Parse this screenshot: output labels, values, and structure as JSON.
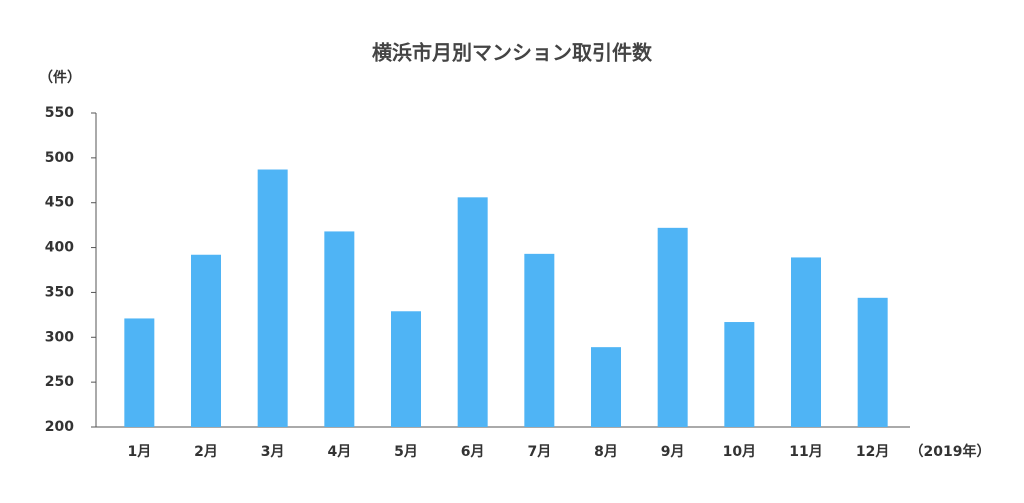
{
  "chart_data": {
    "type": "bar",
    "title": "横浜市月別マンション取引件数",
    "y_label": "（件）",
    "x_label": "（2019年）",
    "categories": [
      "1月",
      "2月",
      "3月",
      "4月",
      "5月",
      "6月",
      "7月",
      "8月",
      "9月",
      "10月",
      "11月",
      "12月"
    ],
    "values": [
      321,
      392,
      487,
      418,
      329,
      456,
      393,
      289,
      422,
      317,
      389,
      344
    ],
    "color": "#4fb4f5",
    "ylim": [
      200,
      550
    ],
    "yticks": [
      200,
      250,
      300,
      350,
      400,
      450,
      500,
      550
    ],
    "grid": false
  }
}
